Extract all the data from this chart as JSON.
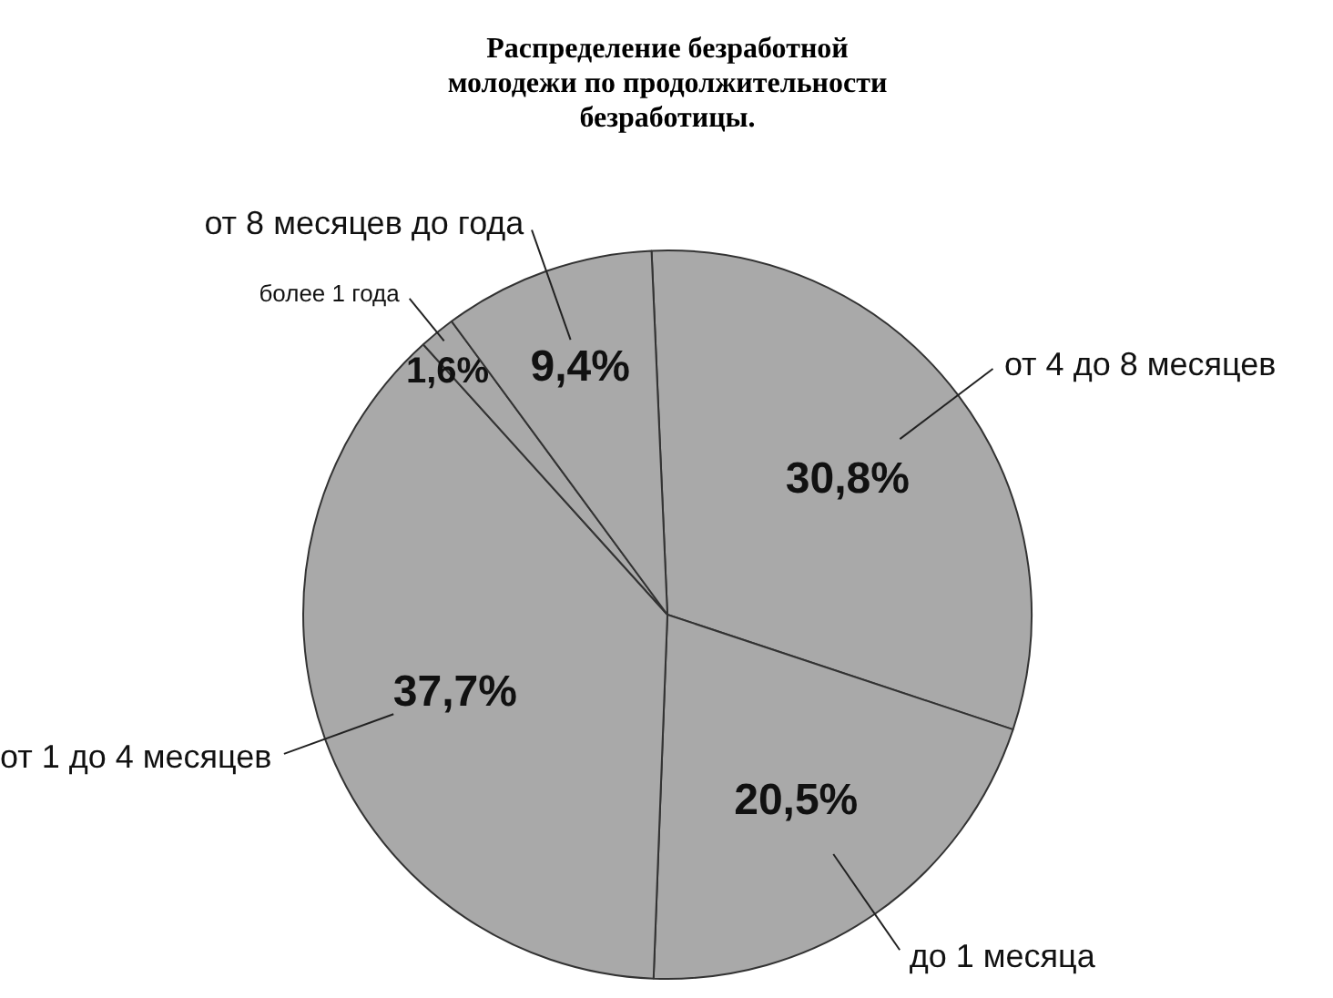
{
  "chart_data": {
    "type": "pie",
    "title": "Распределение безработной молодежи по продолжительности безработицы.",
    "categories": [
      "от 4 до 8 месяцев",
      "до 1 месяца",
      "от 1 до 4 месяцев",
      "более 1 года",
      "от 8 месяцев до года"
    ],
    "values": [
      30.8,
      20.5,
      37.7,
      1.6,
      9.4
    ],
    "value_labels": [
      "30,8%",
      "20,5%",
      "37,7%",
      "1,6%",
      "9,4%"
    ],
    "colors": [
      "#a9a9a9",
      "#a9a9a9",
      "#a9a9a9",
      "#a9a9a9",
      "#a9a9a9"
    ]
  }
}
